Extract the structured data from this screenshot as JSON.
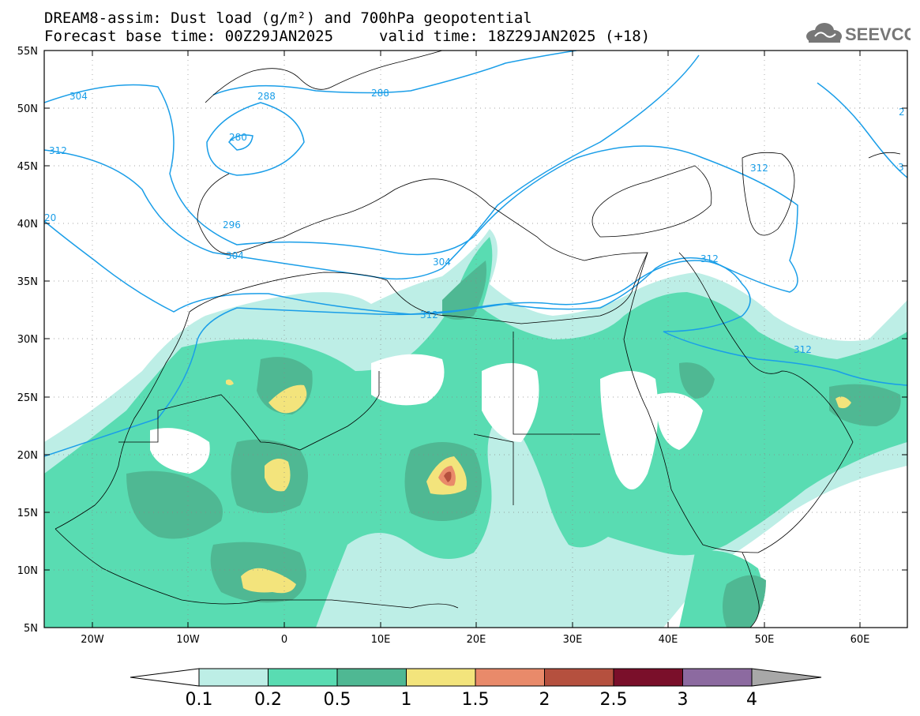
{
  "title": {
    "line1": "DREAM8-assim: Dust load (g/m²) and 700hPa geopotential",
    "line2": "Forecast base time: 00Z29JAN2025",
    "valid": "valid time: 18Z29JAN2025 (+18)"
  },
  "logo": {
    "text": "SEEVCCC",
    "icon": "cloud-icon"
  },
  "axes": {
    "lon_labels": [
      "20W",
      "10W",
      "0",
      "10E",
      "20E",
      "30E",
      "40E",
      "50E",
      "60E"
    ],
    "lat_labels": [
      "55N",
      "50N",
      "45N",
      "40N",
      "35N",
      "30N",
      "25N",
      "20N",
      "15N",
      "10N",
      "5N"
    ]
  },
  "contour_labels": [
    "304",
    "312",
    "20",
    "288",
    "280",
    "296",
    "304",
    "304",
    "312",
    "288",
    "312",
    "312",
    "312",
    "3",
    "2"
  ],
  "colorbar": {
    "ticks": [
      "0.1",
      "0.2",
      "0.5",
      "1",
      "1.5",
      "2",
      "2.5",
      "3",
      "4"
    ],
    "colors": [
      "#bdeee6",
      "#59dcb2",
      "#4fb893",
      "#f3e47c",
      "#e98a6a",
      "#b5503e",
      "#7a0f2a",
      "#8c6aa0",
      "#a8a8a8"
    ]
  },
  "palette": {
    "contour": "#1a9ee8",
    "very_light": "#bdeee6",
    "light": "#59dcb2",
    "medium": "#4fb893",
    "yellow": "#f3e47c",
    "orange": "#e98a6a",
    "red": "#b5503e"
  }
}
